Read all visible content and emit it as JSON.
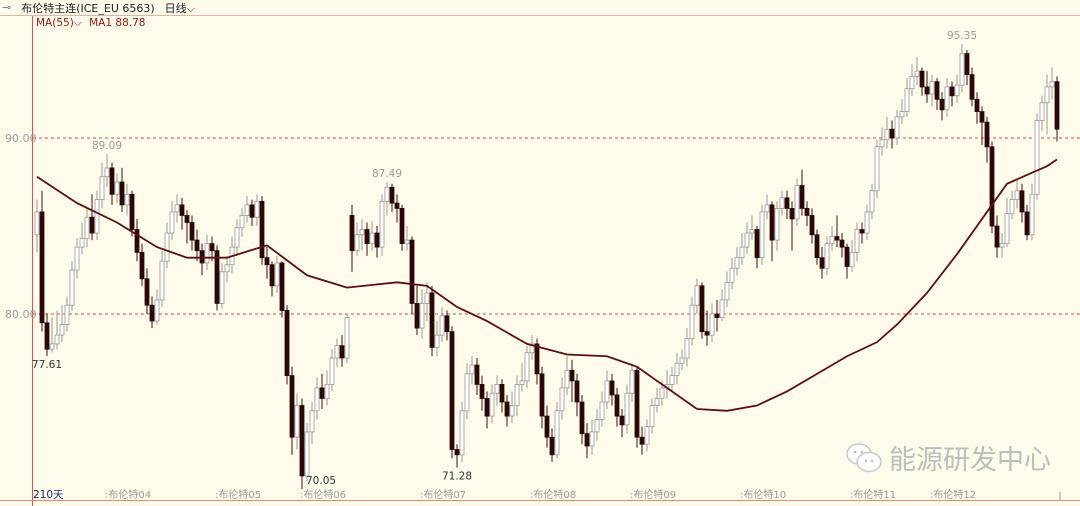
{
  "header": {
    "back_icon": "back-arrow-icon",
    "title": "布伦特主连(ICE_EU 6563)",
    "period": "日线",
    "period_icon": "chevron-down-icon"
  },
  "indicator": {
    "name": "MA(55)",
    "dropdown_icon": "chevron-down-icon",
    "label": "MA1",
    "value": "88.78"
  },
  "watermark": {
    "icon": "wechat-icon",
    "text": "能源研发中心"
  },
  "colors": {
    "background": "#fefbea",
    "down_candle": "#2a0808",
    "up_candle_fill": "#ffffff",
    "up_candle_stroke": "#9a9a9a",
    "ma_line": "#5a1010",
    "grid_dashed": "#d05050"
  },
  "chart_data": {
    "type": "candlestick",
    "period_count_label": "210天",
    "y_ticks": [
      {
        "value": 90,
        "label": "90.00"
      },
      {
        "value": 80,
        "label": "80.00"
      }
    ],
    "grid": "dashed at y ticks",
    "x_ticks": [
      {
        "label": "布伦特04",
        "index": 14
      },
      {
        "label": "布伦特05",
        "index": 36
      },
      {
        "label": "布伦特06",
        "index": 53
      },
      {
        "label": "布伦特07",
        "index": 77
      },
      {
        "label": "布伦特08",
        "index": 99
      },
      {
        "label": "布伦特09",
        "index": 119
      },
      {
        "label": "布伦特10",
        "index": 141
      },
      {
        "label": "布伦特11",
        "index": 163
      },
      {
        "label": "布伦特12",
        "index": 179
      }
    ],
    "annotations": [
      {
        "label": "77.61",
        "index": 2,
        "value": 77.61,
        "pos": "below"
      },
      {
        "label": "89.09",
        "index": 14,
        "value": 89.09,
        "pos": "above"
      },
      {
        "label": "70.05",
        "index": 53,
        "value": 70.05,
        "pos": "below"
      },
      {
        "label": "87.49",
        "index": 70,
        "value": 87.49,
        "pos": "above"
      },
      {
        "label": "71.28",
        "index": 84,
        "value": 71.28,
        "pos": "below"
      },
      {
        "label": "95.35",
        "index": 185,
        "value": 95.35,
        "pos": "above"
      }
    ],
    "ohlc": [
      [
        84.5,
        86.5,
        83.5,
        85.8
      ],
      [
        85.8,
        87.0,
        79.0,
        79.5
      ],
      [
        79.5,
        80.0,
        77.61,
        78.0
      ],
      [
        78.0,
        79.8,
        77.8,
        78.3
      ],
      [
        78.3,
        80.2,
        78.0,
        78.8
      ],
      [
        78.8,
        80.5,
        78.4,
        79.4
      ],
      [
        79.4,
        81.0,
        79.0,
        80.5
      ],
      [
        80.5,
        83.0,
        80.2,
        82.5
      ],
      [
        82.5,
        84.3,
        82.0,
        83.8
      ],
      [
        83.8,
        85.2,
        83.4,
        84.3
      ],
      [
        84.3,
        86.0,
        83.8,
        85.5
      ],
      [
        85.5,
        86.8,
        84.2,
        84.6
      ],
      [
        84.6,
        87.0,
        84.2,
        86.5
      ],
      [
        86.5,
        88.6,
        86.0,
        87.8
      ],
      [
        87.8,
        89.09,
        87.2,
        88.3
      ],
      [
        88.3,
        88.6,
        86.2,
        86.8
      ],
      [
        86.8,
        88.0,
        86.3,
        87.5
      ],
      [
        87.5,
        88.3,
        85.8,
        86.2
      ],
      [
        86.2,
        87.4,
        85.6,
        86.8
      ],
      [
        86.8,
        87.0,
        84.4,
        84.8
      ],
      [
        84.8,
        85.4,
        83.0,
        83.5
      ],
      [
        83.5,
        84.0,
        81.6,
        82.0
      ],
      [
        82.0,
        82.6,
        80.0,
        80.5
      ],
      [
        80.5,
        81.0,
        79.2,
        79.6
      ],
      [
        79.6,
        81.4,
        79.4,
        80.8
      ],
      [
        80.8,
        83.6,
        80.4,
        83.0
      ],
      [
        83.0,
        85.2,
        82.6,
        84.6
      ],
      [
        84.6,
        86.4,
        84.2,
        85.8
      ],
      [
        85.8,
        86.8,
        85.2,
        86.2
      ],
      [
        86.2,
        86.6,
        84.8,
        85.6
      ],
      [
        85.6,
        85.9,
        84.0,
        85.2
      ],
      [
        85.2,
        85.6,
        83.6,
        84.2
      ],
      [
        84.2,
        84.8,
        83.0,
        83.6
      ],
      [
        83.6,
        84.0,
        82.2,
        82.9
      ],
      [
        82.9,
        84.5,
        82.5,
        84.0
      ],
      [
        84.0,
        84.4,
        83.0,
        83.6
      ],
      [
        83.6,
        83.9,
        80.2,
        80.6
      ],
      [
        80.6,
        82.9,
        80.3,
        82.4
      ],
      [
        82.4,
        83.3,
        81.8,
        82.8
      ],
      [
        82.8,
        84.4,
        82.3,
        83.8
      ],
      [
        83.8,
        85.4,
        83.3,
        84.9
      ],
      [
        84.9,
        86.0,
        84.4,
        85.6
      ],
      [
        85.6,
        86.7,
        85.2,
        86.2
      ],
      [
        86.2,
        86.5,
        85.0,
        85.5
      ],
      [
        85.5,
        86.8,
        85.0,
        86.4
      ],
      [
        86.4,
        86.7,
        82.8,
        83.2
      ],
      [
        83.2,
        83.8,
        82.0,
        82.8
      ],
      [
        82.8,
        83.0,
        81.0,
        81.6
      ],
      [
        81.6,
        83.3,
        81.2,
        82.9
      ],
      [
        82.9,
        83.0,
        79.8,
        80.2
      ],
      [
        80.2,
        80.5,
        76.0,
        76.5
      ],
      [
        76.5,
        77.0,
        72.0,
        73.0
      ],
      [
        73.0,
        75.5,
        72.3,
        74.8
      ],
      [
        74.8,
        75.2,
        70.05,
        70.8
      ],
      [
        70.8,
        73.8,
        70.5,
        73.3
      ],
      [
        73.3,
        75.0,
        72.6,
        74.5
      ],
      [
        74.5,
        76.4,
        74.0,
        75.8
      ],
      [
        75.8,
        76.6,
        74.6,
        75.2
      ],
      [
        75.2,
        76.8,
        74.8,
        76.0
      ],
      [
        76.0,
        78.0,
        75.6,
        77.5
      ],
      [
        77.5,
        78.6,
        77.0,
        78.2
      ],
      [
        78.2,
        78.8,
        77.0,
        77.5
      ],
      [
        77.5,
        80.0,
        77.2,
        79.8
      ],
      [
        85.6,
        86.2,
        82.4,
        83.6
      ],
      [
        83.6,
        85.2,
        83.3,
        84.5
      ],
      [
        84.5,
        85.4,
        83.6,
        84.8
      ],
      [
        84.8,
        85.2,
        83.3,
        84.0
      ],
      [
        84.0,
        85.3,
        83.6,
        84.6
      ],
      [
        84.6,
        85.0,
        83.2,
        83.8
      ],
      [
        83.8,
        86.8,
        83.3,
        86.4
      ],
      [
        86.4,
        87.49,
        85.6,
        87.2
      ],
      [
        87.2,
        87.4,
        85.8,
        86.3
      ],
      [
        86.3,
        86.8,
        85.2,
        86.0
      ],
      [
        86.0,
        86.2,
        83.6,
        84.0
      ],
      [
        84.0,
        85.0,
        83.6,
        84.2
      ],
      [
        84.2,
        84.4,
        80.0,
        80.6
      ],
      [
        80.6,
        81.6,
        78.8,
        79.2
      ],
      [
        79.2,
        81.4,
        78.6,
        80.6
      ],
      [
        80.6,
        81.8,
        79.6,
        81.2
      ],
      [
        81.2,
        81.6,
        77.6,
        78.1
      ],
      [
        78.1,
        79.6,
        77.6,
        78.8
      ],
      [
        78.8,
        80.4,
        78.4,
        79.9
      ],
      [
        79.9,
        80.2,
        78.5,
        79.0
      ],
      [
        79.0,
        79.3,
        71.8,
        72.3
      ],
      [
        72.3,
        72.6,
        71.28,
        72.0
      ],
      [
        72.0,
        75.0,
        71.6,
        74.5
      ],
      [
        74.5,
        77.2,
        74.0,
        76.6
      ],
      [
        76.6,
        77.6,
        76.0,
        77.1
      ],
      [
        77.1,
        77.5,
        75.4,
        76.0
      ],
      [
        76.0,
        76.5,
        74.5,
        75.2
      ],
      [
        75.2,
        75.6,
        73.5,
        74.2
      ],
      [
        74.2,
        76.0,
        73.8,
        75.5
      ],
      [
        75.5,
        76.5,
        74.8,
        76.0
      ],
      [
        76.0,
        76.3,
        74.4,
        75.0
      ],
      [
        75.0,
        75.4,
        73.6,
        74.2
      ],
      [
        74.2,
        75.6,
        73.8,
        74.8
      ],
      [
        74.8,
        76.5,
        74.2,
        76.0
      ],
      [
        76.0,
        77.2,
        75.6,
        76.2
      ],
      [
        76.2,
        78.2,
        75.8,
        77.8
      ],
      [
        77.8,
        78.8,
        77.4,
        78.3
      ],
      [
        78.3,
        78.6,
        76.0,
        76.6
      ],
      [
        76.6,
        77.0,
        73.5,
        74.2
      ],
      [
        74.2,
        74.8,
        72.4,
        73.0
      ],
      [
        73.0,
        73.5,
        71.6,
        72.0
      ],
      [
        72.0,
        75.0,
        71.8,
        74.5
      ],
      [
        74.5,
        76.4,
        74.0,
        75.8
      ],
      [
        75.8,
        77.6,
        75.4,
        76.8
      ],
      [
        76.8,
        77.4,
        75.0,
        76.2
      ],
      [
        76.2,
        76.6,
        74.2,
        75.0
      ],
      [
        75.0,
        75.4,
        72.6,
        73.2
      ],
      [
        73.2,
        73.8,
        71.8,
        72.5
      ],
      [
        72.5,
        74.0,
        72.0,
        73.3
      ],
      [
        73.3,
        74.6,
        72.8,
        74.0
      ],
      [
        74.0,
        75.6,
        73.6,
        75.0
      ],
      [
        75.0,
        76.8,
        74.6,
        76.2
      ],
      [
        76.2,
        76.6,
        74.8,
        75.4
      ],
      [
        75.4,
        75.8,
        73.6,
        74.2
      ],
      [
        74.2,
        74.6,
        73.0,
        73.7
      ],
      [
        73.7,
        76.0,
        73.2,
        75.5
      ],
      [
        75.5,
        77.2,
        75.0,
        76.8
      ],
      [
        76.8,
        77.0,
        72.4,
        73.0
      ],
      [
        73.0,
        73.6,
        72.0,
        72.6
      ],
      [
        72.6,
        74.0,
        72.2,
        73.6
      ],
      [
        73.6,
        75.2,
        73.2,
        74.8
      ],
      [
        74.8,
        75.8,
        74.4,
        75.2
      ],
      [
        75.2,
        76.2,
        74.8,
        75.8
      ],
      [
        75.8,
        76.8,
        75.2,
        76.0
      ],
      [
        76.0,
        77.0,
        75.6,
        76.5
      ],
      [
        76.5,
        77.8,
        76.0,
        77.2
      ],
      [
        77.2,
        78.0,
        76.8,
        77.5
      ],
      [
        77.5,
        79.2,
        77.0,
        78.6
      ],
      [
        78.6,
        81.0,
        78.2,
        80.5
      ],
      [
        80.5,
        82.0,
        80.0,
        81.6
      ],
      [
        81.6,
        81.8,
        78.6,
        79.0
      ],
      [
        79.0,
        80.2,
        78.2,
        78.8
      ],
      [
        78.8,
        80.6,
        78.4,
        80.0
      ],
      [
        80.0,
        80.8,
        79.0,
        79.8
      ],
      [
        79.8,
        81.4,
        79.6,
        80.8
      ],
      [
        80.8,
        82.4,
        80.4,
        81.8
      ],
      [
        81.8,
        83.2,
        81.4,
        82.6
      ],
      [
        82.6,
        83.8,
        82.2,
        83.2
      ],
      [
        83.2,
        84.6,
        82.8,
        83.8
      ],
      [
        83.8,
        85.2,
        83.4,
        84.6
      ],
      [
        84.6,
        85.6,
        84.2,
        84.8
      ],
      [
        84.8,
        85.0,
        82.6,
        83.2
      ],
      [
        83.2,
        86.2,
        82.8,
        85.8
      ],
      [
        85.8,
        86.8,
        85.4,
        86.2
      ],
      [
        86.2,
        86.4,
        83.0,
        84.2
      ],
      [
        84.2,
        86.4,
        83.6,
        86.0
      ],
      [
        86.0,
        87.0,
        85.6,
        86.6
      ],
      [
        86.6,
        87.0,
        85.4,
        86.0
      ],
      [
        86.0,
        86.4,
        83.6,
        85.4
      ],
      [
        85.4,
        87.7,
        85.0,
        87.3
      ],
      [
        87.3,
        88.2,
        85.6,
        86.0
      ],
      [
        86.0,
        86.4,
        85.0,
        85.6
      ],
      [
        85.6,
        86.0,
        84.0,
        84.5
      ],
      [
        84.5,
        84.8,
        82.8,
        83.2
      ],
      [
        83.2,
        83.8,
        82.0,
        82.6
      ],
      [
        82.6,
        84.4,
        82.2,
        84.0
      ],
      [
        84.0,
        85.0,
        83.6,
        84.4
      ],
      [
        84.4,
        85.6,
        83.8,
        84.2
      ],
      [
        84.2,
        84.6,
        83.2,
        83.8
      ],
      [
        83.8,
        84.0,
        82.0,
        82.7
      ],
      [
        82.7,
        84.2,
        82.4,
        83.5
      ],
      [
        83.5,
        85.2,
        83.0,
        84.8
      ],
      [
        84.8,
        85.2,
        84.0,
        84.6
      ],
      [
        84.6,
        86.2,
        84.2,
        85.8
      ],
      [
        85.8,
        87.4,
        85.4,
        87.0
      ],
      [
        87.0,
        89.9,
        86.6,
        89.5
      ],
      [
        89.5,
        90.6,
        89.0,
        89.9
      ],
      [
        89.9,
        91.2,
        89.4,
        90.5
      ],
      [
        90.5,
        91.0,
        89.4,
        90.0
      ],
      [
        90.0,
        91.6,
        89.6,
        91.2
      ],
      [
        91.2,
        92.2,
        90.8,
        91.5
      ],
      [
        91.5,
        93.4,
        91.2,
        92.8
      ],
      [
        92.8,
        94.2,
        92.4,
        93.5
      ],
      [
        93.5,
        94.6,
        93.0,
        93.8
      ],
      [
        93.8,
        94.0,
        92.4,
        92.9
      ],
      [
        92.9,
        93.8,
        92.0,
        92.5
      ],
      [
        92.5,
        93.6,
        91.8,
        93.2
      ],
      [
        93.2,
        93.4,
        91.6,
        92.2
      ],
      [
        92.2,
        92.6,
        91.0,
        91.6
      ],
      [
        91.6,
        93.4,
        91.2,
        92.9
      ],
      [
        92.9,
        93.2,
        91.8,
        92.4
      ],
      [
        92.4,
        93.6,
        92.0,
        93.0
      ],
      [
        93.0,
        95.35,
        92.6,
        94.8
      ],
      [
        94.8,
        95.0,
        93.0,
        93.6
      ],
      [
        93.6,
        94.0,
        91.8,
        92.2
      ],
      [
        92.2,
        92.6,
        90.8,
        91.5
      ],
      [
        91.5,
        91.8,
        89.6,
        90.9
      ],
      [
        90.9,
        91.2,
        88.6,
        89.5
      ],
      [
        89.5,
        89.8,
        84.6,
        85.0
      ],
      [
        85.0,
        85.6,
        83.2,
        83.8
      ],
      [
        83.8,
        84.6,
        83.2,
        84.0
      ],
      [
        84.0,
        86.6,
        83.8,
        85.7
      ],
      [
        85.7,
        87.0,
        85.4,
        86.5
      ],
      [
        86.5,
        87.6,
        86.0,
        87.0
      ],
      [
        87.0,
        87.4,
        85.2,
        85.8
      ],
      [
        85.8,
        86.2,
        84.2,
        84.5
      ],
      [
        84.5,
        87.4,
        84.2,
        86.8
      ],
      [
        86.8,
        91.4,
        86.5,
        91.0
      ],
      [
        91.0,
        92.4,
        90.4,
        92.0
      ],
      [
        92.0,
        93.6,
        90.2,
        92.9
      ],
      [
        92.9,
        94.0,
        92.2,
        93.2
      ],
      [
        93.2,
        93.5,
        89.8,
        90.5
      ]
    ],
    "ma55": [
      [
        0,
        87.8
      ],
      [
        8,
        86.3
      ],
      [
        16,
        85.2
      ],
      [
        24,
        83.8
      ],
      [
        30,
        83.2
      ],
      [
        38,
        83.2
      ],
      [
        46,
        83.9
      ],
      [
        54,
        82.2
      ],
      [
        62,
        81.5
      ],
      [
        72,
        81.8
      ],
      [
        78,
        81.6
      ],
      [
        84,
        80.4
      ],
      [
        90,
        79.6
      ],
      [
        98,
        78.3
      ],
      [
        106,
        77.7
      ],
      [
        114,
        77.6
      ],
      [
        120,
        77.0
      ],
      [
        126,
        75.8
      ],
      [
        132,
        74.6
      ],
      [
        138,
        74.5
      ],
      [
        144,
        74.8
      ],
      [
        150,
        75.6
      ],
      [
        156,
        76.6
      ],
      [
        162,
        77.6
      ],
      [
        168,
        78.4
      ],
      [
        172,
        79.4
      ],
      [
        178,
        81.2
      ],
      [
        184,
        83.4
      ],
      [
        190,
        85.8
      ],
      [
        194,
        87.4
      ],
      [
        198,
        87.9
      ],
      [
        202,
        88.4
      ],
      [
        204,
        88.78
      ]
    ]
  }
}
